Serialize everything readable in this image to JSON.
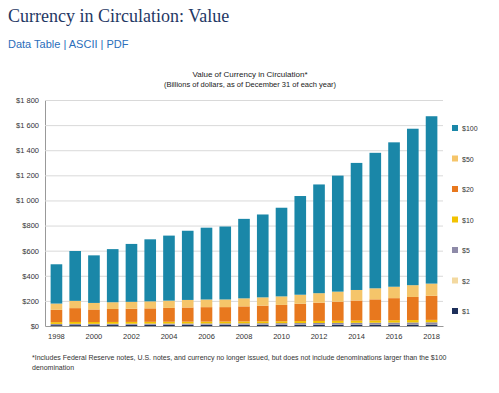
{
  "header": {
    "title": "Currency in Circulation: Value",
    "links": [
      "Data Table",
      "ASCII",
      "PDF"
    ],
    "separator": "|"
  },
  "chart_data": {
    "type": "bar",
    "stacked": true,
    "grid": true,
    "legend": "right",
    "title": "Value of Currency in Circulation*",
    "subtitle": "(Billions of dollars, as of December 31 of each year)",
    "note": "*Includes Federal Reserve notes, U.S. notes, and currency no longer issued, but does not include denominations larger than the $100 denomination",
    "categories": [
      "1998",
      null,
      "2000",
      null,
      "2002",
      null,
      "2004",
      null,
      "2006",
      null,
      "2008",
      null,
      "2010",
      null,
      "2012",
      null,
      "2014",
      null,
      "2016",
      null,
      "2018"
    ],
    "ylim": [
      0,
      1800
    ],
    "yticks": [
      {
        "value": 0,
        "label": "$0"
      },
      {
        "value": 200,
        "label": "$200"
      },
      {
        "value": 400,
        "label": "$400"
      },
      {
        "value": 600,
        "label": "$600"
      },
      {
        "value": 800,
        "label": "$800"
      },
      {
        "value": 1000,
        "label": "$1 000"
      },
      {
        "value": 1200,
        "label": "$1 200"
      },
      {
        "value": 1400,
        "label": "$1 400"
      },
      {
        "value": 1600,
        "label": "$1 600"
      },
      {
        "value": 1800,
        "label": "$1 800"
      }
    ],
    "series": [
      {
        "name": "$1",
        "color": "#1d2f5a",
        "values": [
          7.2,
          7.5,
          7.6,
          7.8,
          8.0,
          8.3,
          8.5,
          8.7,
          8.9,
          9.1,
          9.3,
          9.6,
          9.8,
          10.1,
          10.3,
          10.6,
          10.8,
          11.1,
          11.4,
          11.7,
          12.0
        ]
      },
      {
        "name": "$2",
        "color": "#f3d9a0",
        "values": [
          1.1,
          1.1,
          1.1,
          1.1,
          1.2,
          1.2,
          1.3,
          1.3,
          1.4,
          1.4,
          1.5,
          1.6,
          1.6,
          1.7,
          1.8,
          1.9,
          2.0,
          2.1,
          2.2,
          2.3,
          2.4
        ]
      },
      {
        "name": "$5",
        "color": "#8e8aa8",
        "values": [
          8.3,
          8.7,
          8.6,
          8.9,
          9.1,
          9.4,
          9.6,
          9.8,
          10.0,
          10.2,
          10.5,
          10.8,
          11.0,
          11.4,
          11.8,
          12.2,
          12.6,
          13.1,
          13.7,
          14.3,
          15.0
        ]
      },
      {
        "name": "$10",
        "color": "#f2c200",
        "values": [
          14.0,
          15.0,
          14.4,
          14.5,
          14.4,
          14.5,
          14.6,
          14.8,
          14.8,
          14.7,
          15.0,
          15.2,
          15.5,
          16.0,
          16.5,
          17.0,
          17.5,
          18.0,
          18.5,
          18.9,
          19.3
        ]
      },
      {
        "name": "$20",
        "color": "#e8781e",
        "values": [
          98,
          110,
          100,
          103,
          105,
          107,
          110,
          113,
          115,
          115,
          120,
          125,
          130,
          138,
          145,
          152,
          160,
          168,
          176,
          184,
          192
        ]
      },
      {
        "name": "$50",
        "color": "#f5c56a",
        "values": [
          50,
          58,
          52,
          54,
          55,
          56,
          58,
          60,
          61,
          61,
          64,
          66,
          68,
          72,
          76,
          80,
          84,
          88,
          91,
          94,
          97
        ]
      },
      {
        "name": "$100",
        "color": "#1a87a8",
        "values": [
          313,
          397,
          379,
          423,
          461,
          494,
          518,
          551,
          572,
          581,
          633,
          660,
          706,
          786,
          866,
          924,
          1012,
          1079,
          1150,
          1246,
          1333
        ]
      }
    ]
  }
}
